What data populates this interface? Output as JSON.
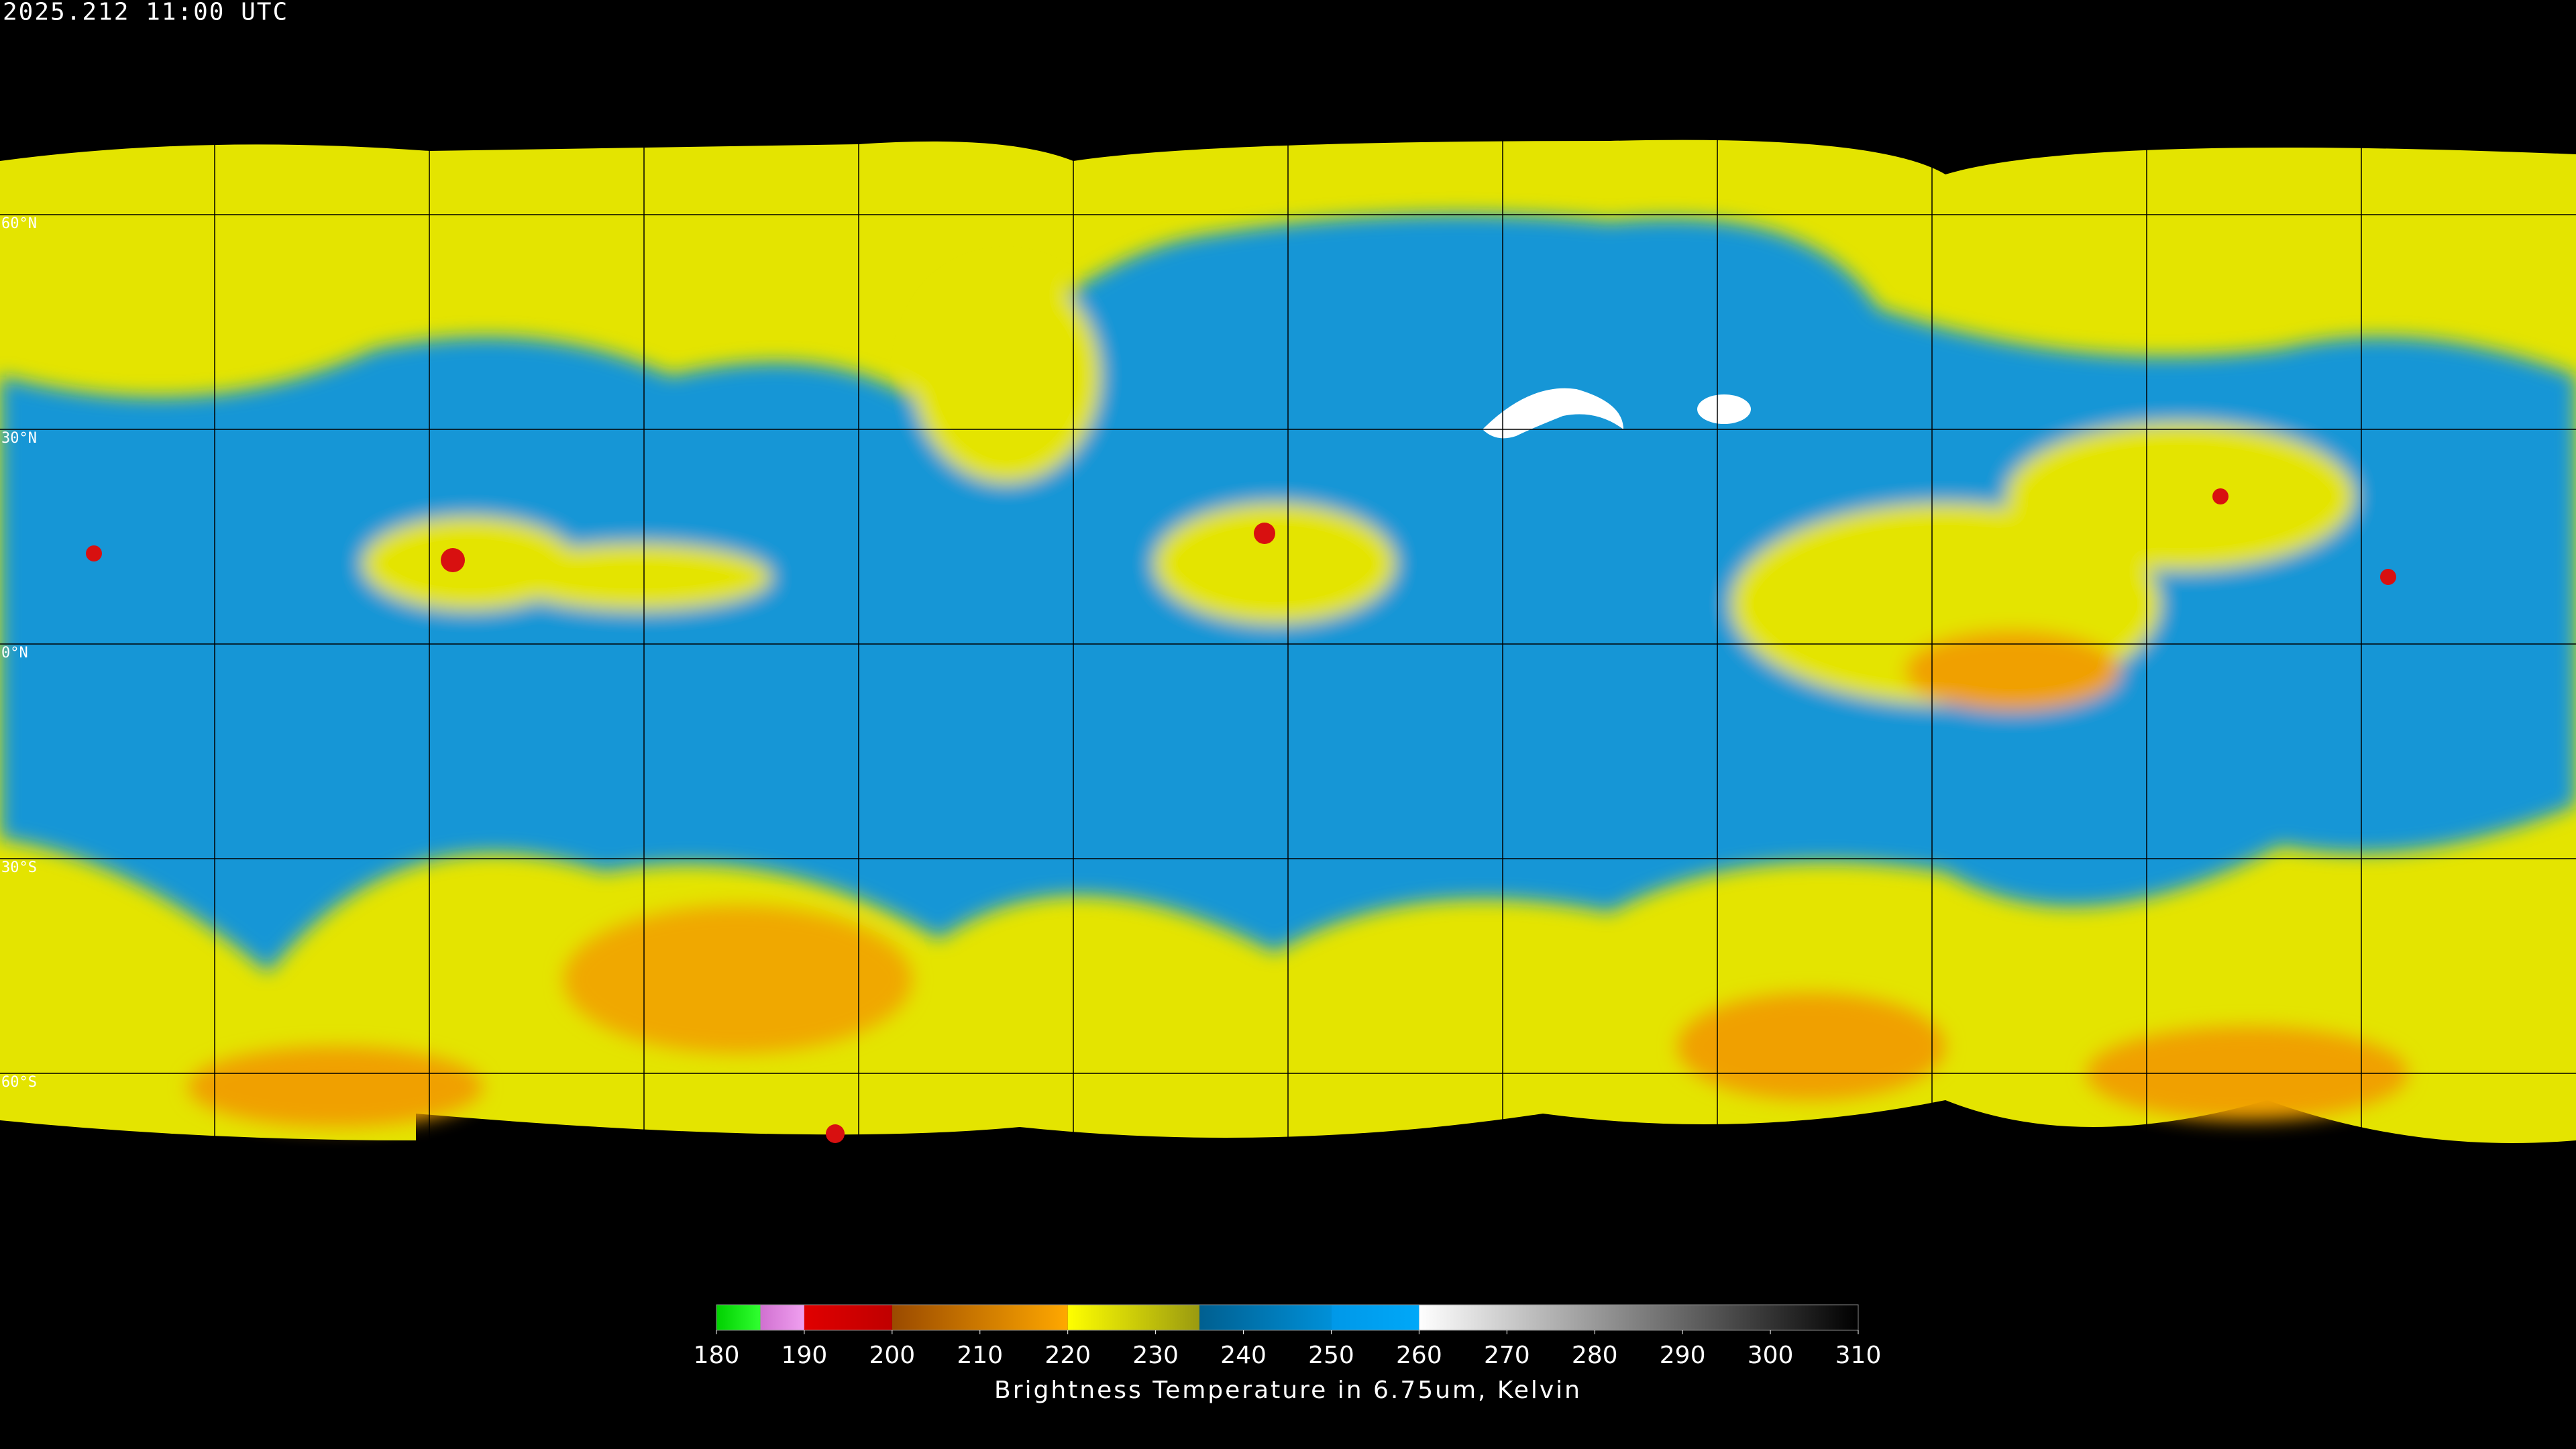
{
  "title": "2025.212 11:00 UTC",
  "latitude_labels": [
    "60°N",
    "30°N",
    "0°N",
    "30°S",
    "60°S"
  ],
  "colorbar": {
    "label": "Brightness Temperature in 6.75um, Kelvin",
    "ticks": [
      180,
      190,
      200,
      210,
      220,
      230,
      240,
      250,
      260,
      270,
      280,
      290,
      300,
      310
    ],
    "segments": [
      {
        "from": 180,
        "to": 185,
        "start_color": "#00d000",
        "end_color": "#30ff30"
      },
      {
        "from": 185,
        "to": 190,
        "start_color": "#d070d0",
        "end_color": "#f0a0f0"
      },
      {
        "from": 190,
        "to": 200,
        "start_color": "#e00000",
        "end_color": "#c00000"
      },
      {
        "from": 200,
        "to": 220,
        "start_color": "#9a4a00",
        "end_color": "#ffa800"
      },
      {
        "from": 220,
        "to": 235,
        "start_color": "#ffff00",
        "end_color": "#9a9a10"
      },
      {
        "from": 235,
        "to": 250,
        "start_color": "#005f90",
        "end_color": "#0090d8"
      },
      {
        "from": 250,
        "to": 260,
        "start_color": "#0098e8",
        "end_color": "#00a8f8"
      },
      {
        "from": 260,
        "to": 310,
        "start_color": "#ffffff",
        "end_color": "#000000"
      }
    ]
  }
}
